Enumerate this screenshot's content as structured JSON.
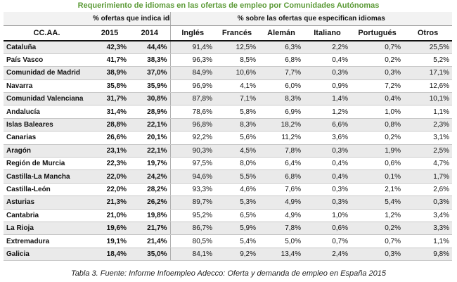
{
  "title": "Requerimiento de idiomas en las ofertas de empleo por Comunidades Autónomas",
  "group_headers": {
    "left": "% ofertas que indica idioma",
    "right": "% sobre las ofertas que especifican idiomas"
  },
  "columns": [
    "CC.AA.",
    "2015",
    "2014",
    "Inglés",
    "Francés",
    "Alemán",
    "Italiano",
    "Portugués",
    "Otros"
  ],
  "rows": [
    [
      "Cataluña",
      "42,3%",
      "44,4%",
      "91,4%",
      "12,5%",
      "6,3%",
      "2,2%",
      "0,7%",
      "25,5%"
    ],
    [
      "País Vasco",
      "41,7%",
      "38,3%",
      "96,3%",
      "8,5%",
      "6,8%",
      "0,4%",
      "0,2%",
      "5,2%"
    ],
    [
      "Comunidad de Madrid",
      "38,9%",
      "37,0%",
      "84,9%",
      "10,6%",
      "7,7%",
      "0,3%",
      "0,3%",
      "17,1%"
    ],
    [
      "Navarra",
      "35,8%",
      "35,9%",
      "96,9%",
      "4,1%",
      "6,0%",
      "0,9%",
      "7,2%",
      "12,6%"
    ],
    [
      "Comunidad Valenciana",
      "31,7%",
      "30,8%",
      "87,8%",
      "7,1%",
      "8,3%",
      "1,4%",
      "0,4%",
      "10,1%"
    ],
    [
      "Andalucía",
      "31,4%",
      "28,9%",
      "78,6%",
      "5,8%",
      "6,9%",
      "1,2%",
      "1,0%",
      "1,1%"
    ],
    [
      "Islas Baleares",
      "28,8%",
      "22,1%",
      "96,8%",
      "8,3%",
      "18,2%",
      "6,6%",
      "0,8%",
      "2,3%"
    ],
    [
      "Canarias",
      "26,6%",
      "20,1%",
      "92,2%",
      "5,6%",
      "11,2%",
      "3,6%",
      "0,2%",
      "3,1%"
    ],
    [
      "Aragón",
      "23,1%",
      "22,1%",
      "90,3%",
      "4,5%",
      "7,8%",
      "0,3%",
      "1,9%",
      "2,5%"
    ],
    [
      "Región de Murcia",
      "22,3%",
      "19,7%",
      "97,5%",
      "8,0%",
      "6,4%",
      "0,4%",
      "0,6%",
      "4,7%"
    ],
    [
      "Castilla-La Mancha",
      "22,0%",
      "24,2%",
      "94,6%",
      "5,5%",
      "6,8%",
      "0,4%",
      "0,1%",
      "1,7%"
    ],
    [
      "Castilla-León",
      "22,0%",
      "28,2%",
      "93,3%",
      "4,6%",
      "7,6%",
      "0,3%",
      "2,1%",
      "2,6%"
    ],
    [
      "Asturias",
      "21,3%",
      "26,2%",
      "89,7%",
      "5,3%",
      "4,9%",
      "0,3%",
      "5,4%",
      "0,3%"
    ],
    [
      "Cantabria",
      "21,0%",
      "19,8%",
      "95,2%",
      "6,5%",
      "4,9%",
      "1,0%",
      "1,2%",
      "3,4%"
    ],
    [
      "La Rioja",
      "19,6%",
      "21,7%",
      "86,7%",
      "5,9%",
      "7,8%",
      "0,6%",
      "0,2%",
      "3,3%"
    ],
    [
      "Extremadura",
      "19,1%",
      "21,4%",
      "80,5%",
      "5,4%",
      "5,0%",
      "0,7%",
      "0,7%",
      "1,1%"
    ],
    [
      "Galicia",
      "18,4%",
      "35,0%",
      "84,1%",
      "9,2%",
      "13,4%",
      "2,4%",
      "0,3%",
      "9,8%"
    ]
  ],
  "caption": "Tabla 3. Fuente: Informe Infoempleo Adecco: Oferta y demanda de empleo en España 2015",
  "colors": {
    "title": "#5b9a36",
    "stripe": "#eaeaea",
    "header_band": "#f2f2f2"
  }
}
